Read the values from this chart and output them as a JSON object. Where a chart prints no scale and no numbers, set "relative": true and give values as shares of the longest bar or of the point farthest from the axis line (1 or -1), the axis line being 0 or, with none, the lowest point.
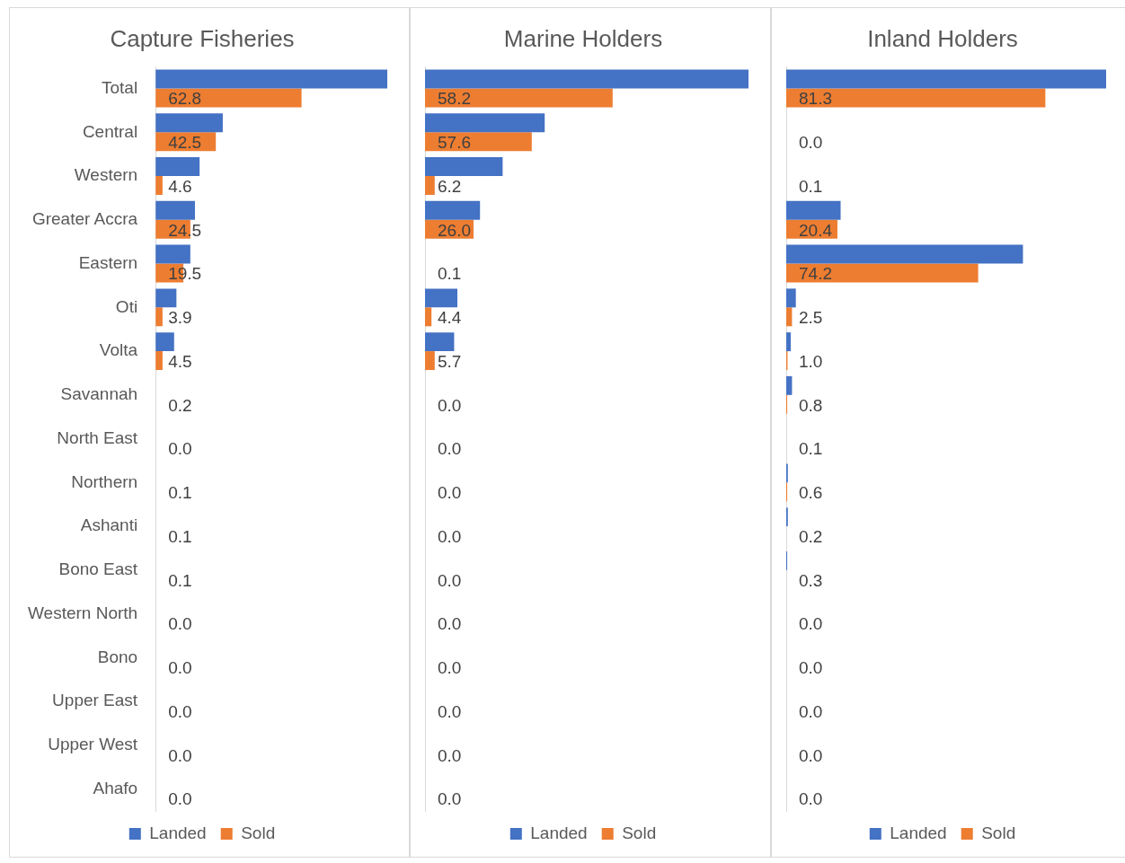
{
  "chart_data": [
    {
      "type": "bar",
      "orientation": "horizontal",
      "relative": true,
      "title": "Capture Fisheries",
      "legend": "bottom",
      "tick_labels": "y",
      "categories": [
        "Total",
        "Central",
        "Western",
        "Greater Accra",
        "Eastern",
        "Oti",
        "Volta",
        "Savannah",
        "North East",
        "Northern",
        "Ashanti",
        "Bono East",
        "Western North",
        "Bono",
        "Upper East",
        "Upper West",
        "Ahafo"
      ],
      "series": [
        {
          "name": "Landed",
          "color": "#4472c4",
          "values": [
            1,
            0.29,
            0.19,
            0.17,
            0.15,
            0.09,
            0.08,
            0,
            0,
            0,
            0,
            0,
            0,
            0,
            0,
            0,
            0
          ]
        },
        {
          "name": "Sold",
          "color": "#ed7d31",
          "values": [
            0.63,
            0.26,
            0.03,
            0.15,
            0.12,
            0.03,
            0.03,
            0,
            0,
            0,
            0,
            0,
            0,
            0,
            0,
            0,
            0
          ]
        }
      ],
      "annotations": [
        {
          "text": "62.8",
          "y": "Total"
        },
        {
          "text": "42.5",
          "y": "Central"
        },
        {
          "text": "4.6",
          "y": "Western"
        },
        {
          "text": "24.5",
          "y": "Greater Accra"
        },
        {
          "text": "19.5",
          "y": "Eastern"
        },
        {
          "text": "3.9",
          "y": "Oti"
        },
        "4.5",
        "0.2",
        "0.0",
        "0.1",
        "0.1",
        "0.1",
        "0.0",
        "0.0",
        "0.0",
        "0.0",
        "0.0"
      ]
    },
    {
      "type": "bar",
      "orientation": "horizontal",
      "relative": true,
      "title": "Marine Holders",
      "legend": "bottom",
      "tick_labels": false,
      "categories": [
        "Total",
        "Central",
        "Western",
        "Greater Accra",
        "Eastern",
        "Oti",
        "Volta",
        "Savannah",
        "North East",
        "Northern",
        "Ashanti",
        "Bono East",
        "Western North",
        "Bono",
        "Upper East",
        "Upper West",
        "Ahafo"
      ],
      "series": [
        {
          "name": "Landed",
          "color": "#4472c4",
          "values": [
            1,
            0.37,
            0.24,
            0.17,
            0,
            0.1,
            0.09,
            0,
            0,
            0,
            0,
            0,
            0,
            0,
            0,
            0,
            0
          ]
        },
        {
          "name": "Sold",
          "color": "#ed7d31",
          "values": [
            0.58,
            0.33,
            0.03,
            0.15,
            0,
            0.02,
            0.03,
            0,
            0,
            0,
            0,
            0,
            0,
            0,
            0,
            0,
            0
          ]
        }
      ],
      "annotations": [
        {
          "text": "58.2",
          "y": "Total"
        },
        {
          "text": "57.6",
          "y": "Central"
        },
        {
          "text": "6.2",
          "y": "Western"
        },
        {
          "text": "26.0",
          "y": "Greater Accra"
        },
        "0.1",
        {
          "text": "4.4",
          "y": "Oti"
        },
        {
          "text": "5.7",
          "y": "Volta"
        },
        "0.0",
        "0.0",
        "0.0",
        "0.0",
        "0.0",
        "0.0",
        "0.0",
        "0.0",
        "0.0",
        "0.0"
      ]
    },
    {
      "type": "bar",
      "orientation": "horizontal",
      "relative": true,
      "title": "Inland Holders",
      "legend": "bottom",
      "tick_labels": false,
      "categories": [
        "Total",
        "Central",
        "Western",
        "Greater Accra",
        "Eastern",
        "Oti",
        "Volta",
        "Savannah",
        "North East",
        "Northern",
        "Ashanti",
        "Bono East",
        "Western North",
        "Bono",
        "Upper East",
        "Upper West",
        "Ahafo"
      ],
      "series": [
        {
          "name": "Landed",
          "color": "#4472c4",
          "values": [
            1,
            0,
            0,
            0.17,
            0.74,
            0.03,
            0.014,
            0.018,
            0,
            0.005,
            0.005,
            0.003,
            0,
            0,
            0,
            0,
            0
          ]
        },
        {
          "name": "Sold",
          "color": "#ed7d31",
          "values": [
            0.81,
            0,
            0,
            0.16,
            0.6,
            0.018,
            0.004,
            0.003,
            0,
            0.003,
            0,
            0,
            0,
            0,
            0,
            0,
            0
          ]
        }
      ],
      "annotations": [
        {
          "text": "81.3",
          "y": "Total"
        },
        "0.0",
        "0.1",
        {
          "text": "20.4",
          "y": "Greater Accra"
        },
        {
          "text": "74.2",
          "y": "Eastern"
        },
        "2.5",
        "1.0",
        "0.8",
        "0.1",
        "0.6",
        "0.2",
        "0.3",
        "0.0",
        "0.0",
        "0.0",
        "0.0",
        "0.0"
      ]
    }
  ]
}
